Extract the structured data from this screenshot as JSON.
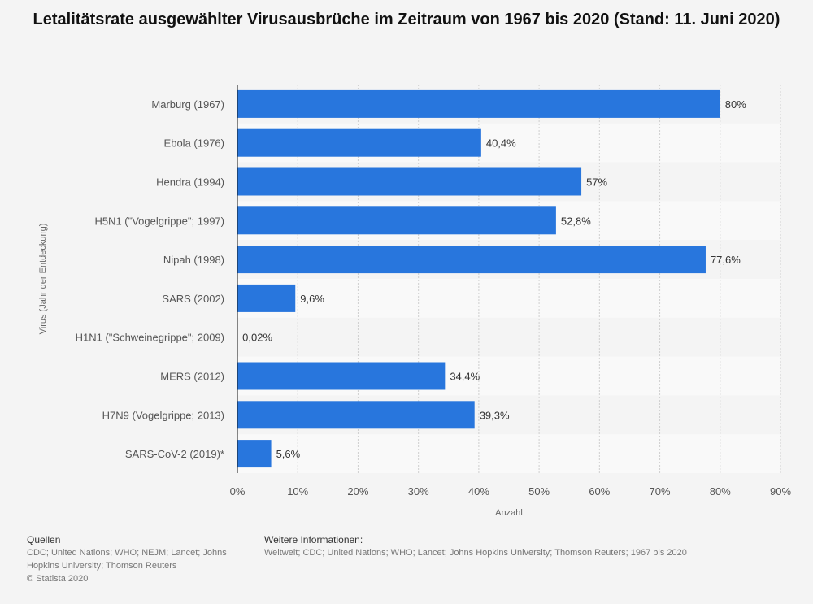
{
  "title": "Letalitätsrate ausgewählter Virusausbrüche im Zeitraum von 1967 bis 2020 (Stand: 11. Juni 2020)",
  "footer": {
    "sources_heading": "Quellen",
    "sources_text": "CDC; United Nations; WHO; NEJM; Lancet; Johns Hopkins University; Thomson Reuters",
    "copyright": "© Statista 2020",
    "info_heading": "Weitere Informationen:",
    "info_text": "Weltweit; CDC; United Nations; WHO; Lancet; Johns Hopkins University; Thomson Reuters; 1967 bis 2020"
  },
  "chart_data": {
    "type": "bar",
    "orientation": "horizontal",
    "categories": [
      "Marburg (1967)",
      "Ebola (1976)",
      "Hendra (1994)",
      "H5N1 (\"Vogelgrippe\"; 1997)",
      "Nipah (1998)",
      "SARS (2002)",
      "H1N1 (\"Schweinegrippe\"; 2009)",
      "MERS (2012)",
      "H7N9 (Vogelgrippe; 2013)",
      "SARS-CoV-2 (2019)*"
    ],
    "values": [
      80,
      40.4,
      57,
      52.8,
      77.6,
      9.6,
      0.02,
      34.4,
      39.3,
      5.6
    ],
    "data_labels": [
      "80%",
      "40,4%",
      "57%",
      "52,8%",
      "77,6%",
      "9,6%",
      "0,02%",
      "34,4%",
      "39,3%",
      "5,6%"
    ],
    "xlabel": "Anzahl",
    "ylabel": "Virus (Jahr der Entdeckung)",
    "xlim": [
      0,
      90
    ],
    "xticks": [
      0,
      10,
      20,
      30,
      40,
      50,
      60,
      70,
      80,
      90
    ],
    "xtick_labels": [
      "0%",
      "10%",
      "20%",
      "30%",
      "40%",
      "50%",
      "60%",
      "70%",
      "80%",
      "90%"
    ],
    "bar_color": "#2876dd",
    "grid": true
  }
}
